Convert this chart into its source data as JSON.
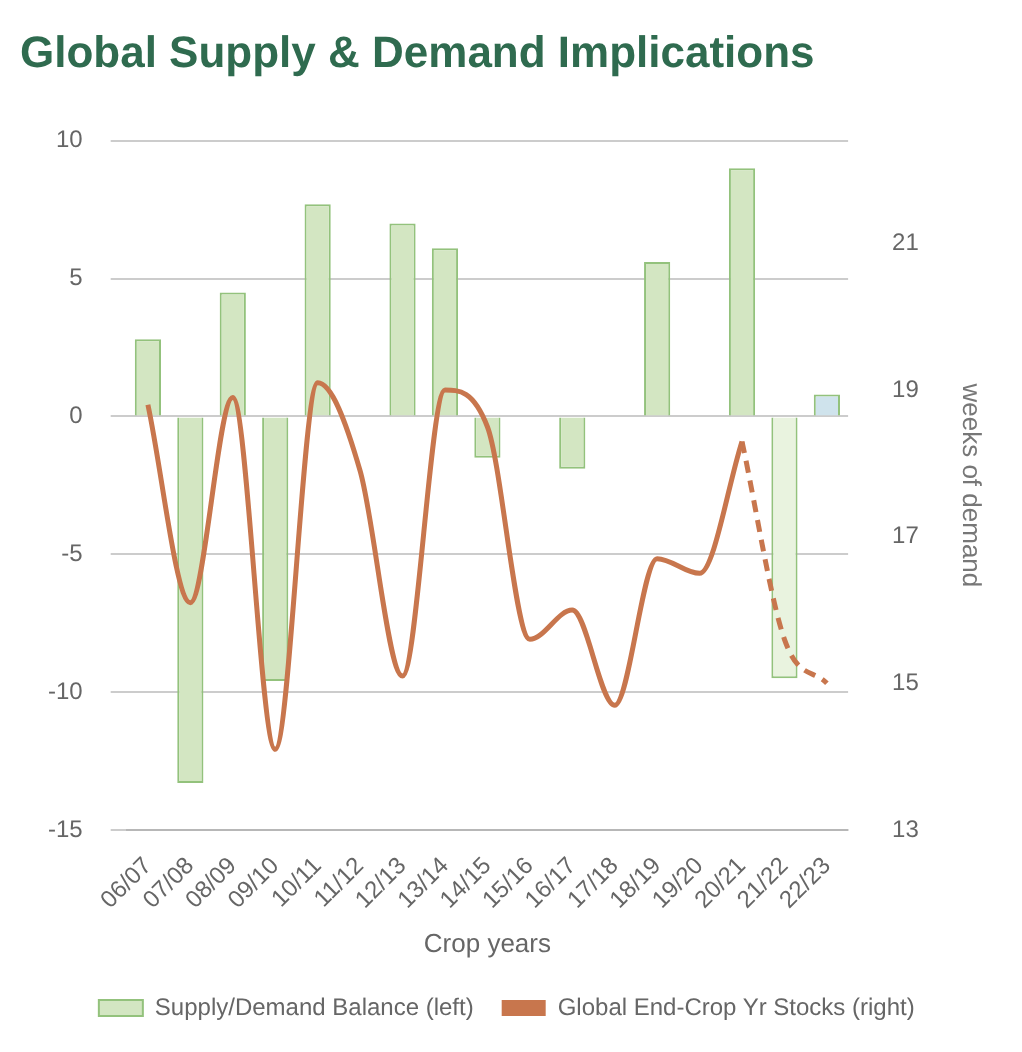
{
  "chart_data": {
    "type": "bar",
    "title": "Global Supply & Demand Implications",
    "xlabel": "Crop years",
    "y2label": "weeks of demand",
    "categories": [
      "06/07",
      "07/08",
      "08/09",
      "09/10",
      "10/11",
      "11/12",
      "12/13",
      "13/14",
      "14/15",
      "15/16",
      "16/17",
      "17/18",
      "18/19",
      "19/20",
      "20/21",
      "21/22",
      "22/23"
    ],
    "series": [
      {
        "name": "Supply/Demand Balance (left)",
        "color": "#d3e6c2",
        "colors": [
          "#d3e6c2",
          "#d3e6c2",
          "#d3e6c2",
          "#d3e6c2",
          "#d3e6c2",
          "#d3e6c2",
          "#d3e6c2",
          "#d3e6c2",
          "#d3e6c2",
          "#d3e6c2",
          "#d3e6c2",
          "#d3e6c2",
          "#d3e6c2",
          "#d3e6c2",
          "#d3e6c2",
          "#e9f3df",
          "#cfe3ec"
        ],
        "values": [
          2.8,
          -13.3,
          4.5,
          -9.6,
          7.7,
          null,
          7.0,
          6.1,
          -1.5,
          null,
          -1.9,
          null,
          5.6,
          null,
          9.0,
          -9.5,
          0.8
        ]
      },
      {
        "name": "Global End-Crop Yr Stocks (right)",
        "type": "line",
        "axis": "y2",
        "color": "#c8764d",
        "line_style": "solid",
        "values": [
          18.8,
          16.1,
          18.9,
          14.1,
          19.1,
          17.9,
          15.1,
          19.0,
          18.5,
          15.6,
          16.0,
          14.7,
          16.7,
          16.5,
          18.3,
          null,
          null
        ]
      },
      {
        "type": "line",
        "axis": "y2",
        "color": "#c8764d",
        "line_style": "dashed",
        "values": [
          null,
          null,
          null,
          null,
          null,
          null,
          null,
          null,
          null,
          null,
          null,
          null,
          null,
          null,
          18.3,
          15.6,
          15.0
        ]
      }
    ],
    "ylim": [
      -15,
      10
    ],
    "yticks": [
      -15,
      -10,
      -5,
      0,
      5,
      10
    ],
    "y2lim": [
      13,
      22.4
    ],
    "y2ticks": [
      13,
      15,
      17,
      19,
      21
    ],
    "grid": "y",
    "legend": "bottom",
    "marker": "none"
  }
}
